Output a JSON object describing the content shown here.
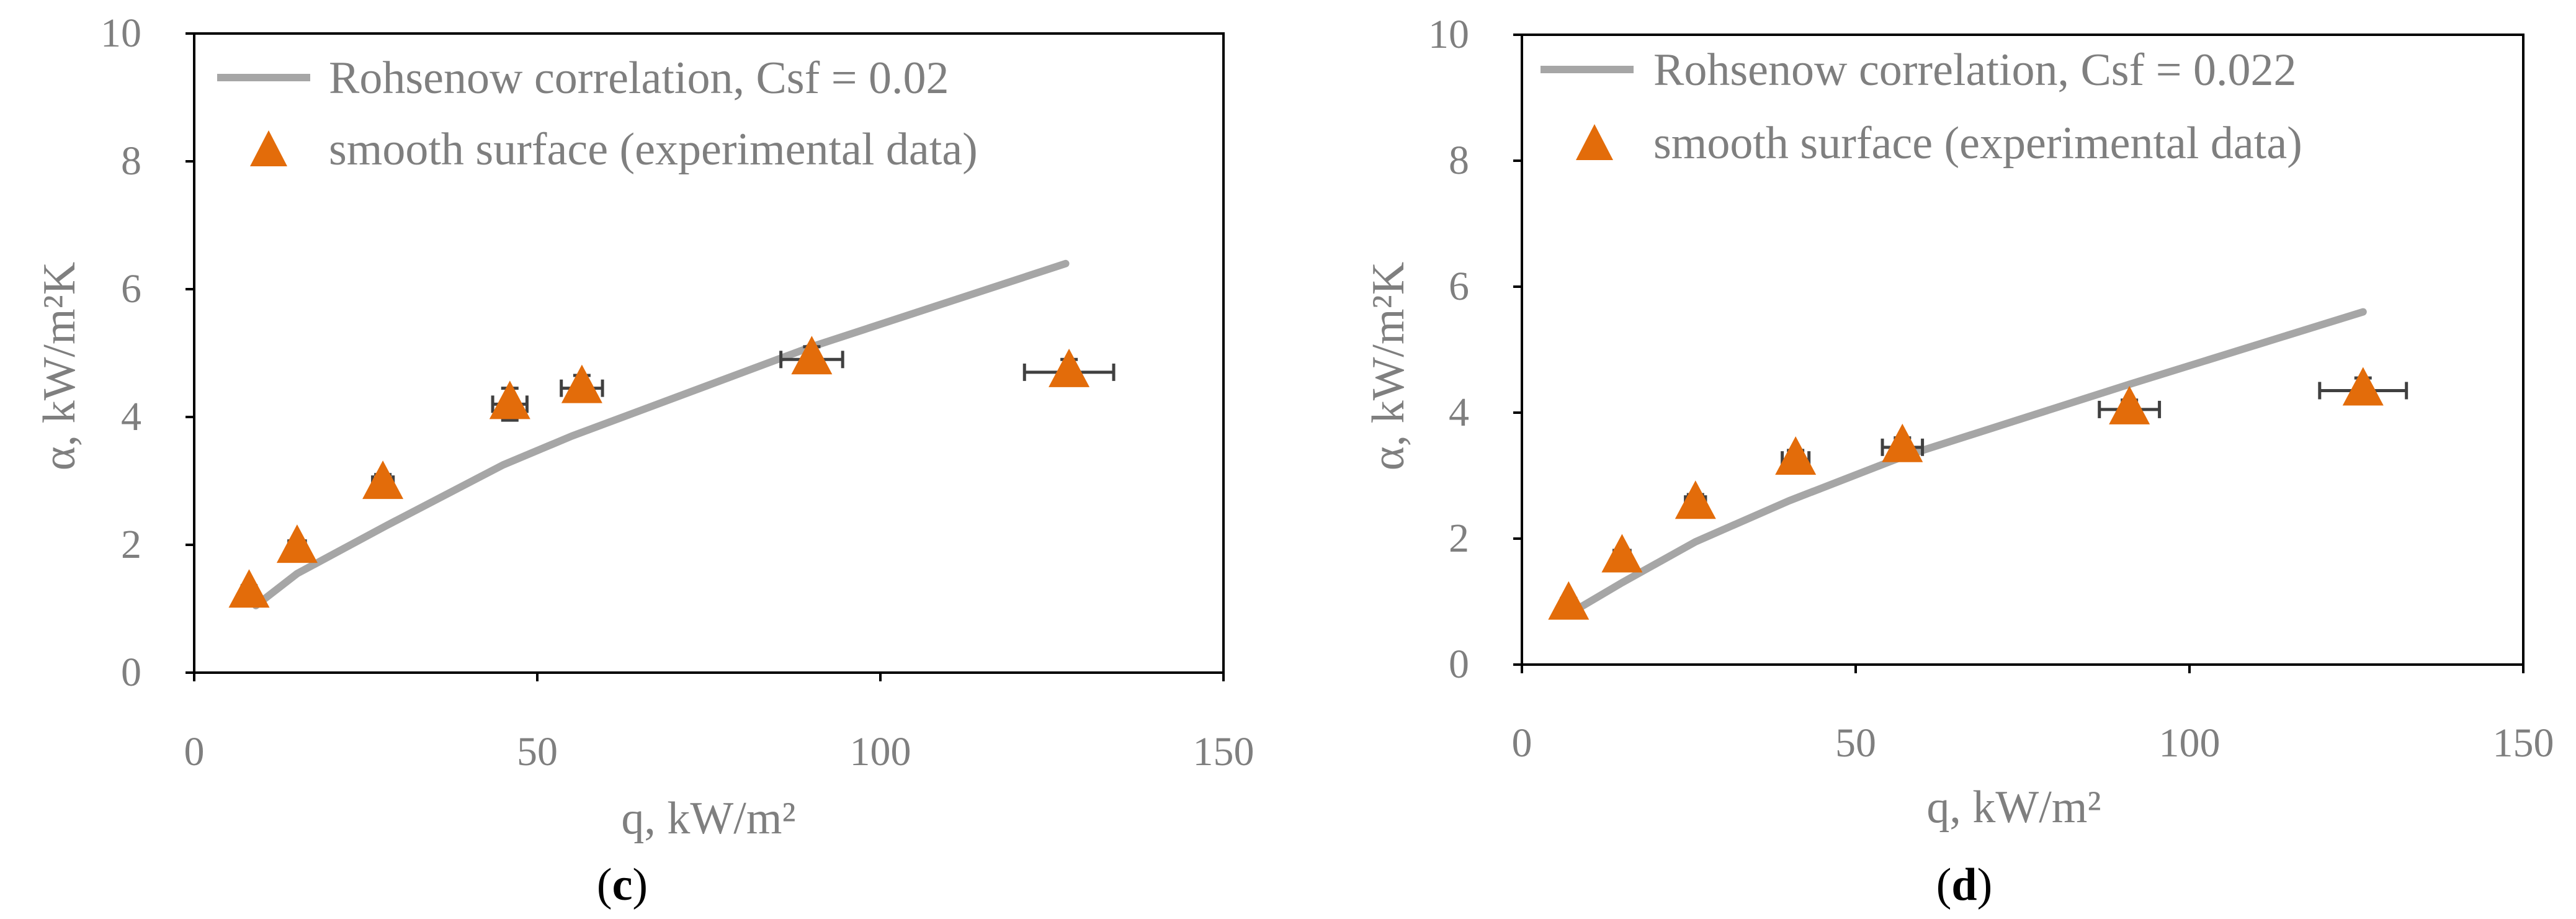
{
  "colors": {
    "line": "#a6a6a6",
    "marker": "#e36c0a",
    "axis": "#000000",
    "text": "#7f7f7f",
    "errorbar": "#404040"
  },
  "chart_data": [
    {
      "type": "scatter",
      "panel_label": "c",
      "xlabel": "q, kW/m²",
      "ylabel": "α, kW/m²K",
      "xlim": [
        0,
        150
      ],
      "ylim": [
        0,
        10
      ],
      "xticks": [
        "0",
        "50",
        "100",
        "150"
      ],
      "yticks": [
        "0",
        "2",
        "4",
        "6",
        "8",
        "10"
      ],
      "legend_position": "top-left",
      "series": [
        {
          "name": "Rohsenow correlation, Csf = 0.02",
          "kind": "line",
          "x": [
            9,
            15,
            28,
            45,
            55,
            90,
            127
          ],
          "y": [
            1.05,
            1.55,
            2.3,
            3.25,
            3.7,
            5.1,
            6.4
          ]
        },
        {
          "name": "smooth surface (experimental data)",
          "kind": "marker",
          "marker": "triangle",
          "x": [
            8,
            15,
            27.5,
            46,
            56.5,
            90,
            127.5
          ],
          "y": [
            1.25,
            1.95,
            2.95,
            4.2,
            4.45,
            4.9,
            4.7
          ],
          "x_error": [
            1.0,
            1.2,
            1.5,
            2.5,
            3.0,
            4.5,
            6.5
          ],
          "y_error": [
            0.1,
            0.1,
            0.15,
            0.25,
            0.2,
            0.2,
            0.2
          ]
        }
      ]
    },
    {
      "type": "scatter",
      "panel_label": "d",
      "xlabel": "q, kW/m²",
      "ylabel": "α, kW/m²K",
      "xlim": [
        0,
        150
      ],
      "ylim": [
        0,
        10
      ],
      "xticks": [
        "0",
        "50",
        "100",
        "150"
      ],
      "yticks": [
        "0",
        "2",
        "4",
        "6",
        "8",
        "10"
      ],
      "legend_position": "top-left",
      "series": [
        {
          "name": "Rohsenow correlation, Csf = 0.022",
          "kind": "line",
          "x": [
            7,
            15,
            26,
            40,
            57,
            91,
            126
          ],
          "y": [
            0.8,
            1.3,
            1.95,
            2.6,
            3.3,
            4.45,
            5.6
          ]
        },
        {
          "name": "smooth surface (experimental data)",
          "kind": "marker",
          "marker": "triangle",
          "x": [
            7,
            15,
            26,
            41,
            57,
            91,
            126
          ],
          "y": [
            0.95,
            1.7,
            2.55,
            3.25,
            3.45,
            4.05,
            4.35
          ],
          "x_error": [
            0.8,
            1.2,
            1.5,
            2.0,
            3.0,
            4.5,
            6.5
          ],
          "y_error": [
            0.1,
            0.1,
            0.15,
            0.15,
            0.15,
            0.15,
            0.2
          ]
        }
      ]
    }
  ]
}
